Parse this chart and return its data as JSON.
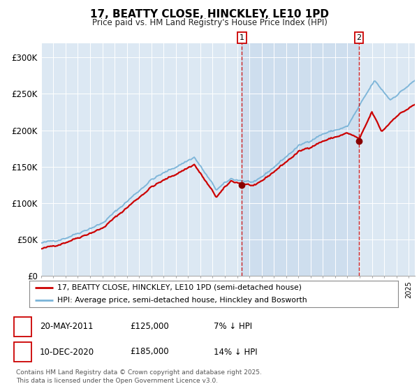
{
  "title": "17, BEATTY CLOSE, HINCKLEY, LE10 1PD",
  "subtitle": "Price paid vs. HM Land Registry's House Price Index (HPI)",
  "ylim": [
    0,
    320000
  ],
  "yticks": [
    0,
    50000,
    100000,
    150000,
    200000,
    250000,
    300000
  ],
  "ytick_labels": [
    "£0",
    "£50K",
    "£100K",
    "£150K",
    "£200K",
    "£250K",
    "£300K"
  ],
  "hpi_color": "#7ab4d8",
  "price_color": "#cc0000",
  "bg_color": "#dce8f3",
  "shaded_color": "#c5d8ec",
  "grid_color": "#ffffff",
  "sale1_x": 2011.38,
  "sale2_x": 2020.95,
  "sale1_price": 125000,
  "sale2_price": 185000,
  "sale1_date_label": "20-MAY-2011",
  "sale2_date_label": "10-DEC-2020",
  "sale1_pct": "7% ↓ HPI",
  "sale2_pct": "14% ↓ HPI",
  "legend_line1": "17, BEATTY CLOSE, HINCKLEY, LE10 1PD (semi-detached house)",
  "legend_line2": "HPI: Average price, semi-detached house, Hinckley and Bosworth",
  "footnote": "Contains HM Land Registry data © Crown copyright and database right 2025.\nThis data is licensed under the Open Government Licence v3.0.",
  "xstart": 1995.0,
  "xend": 2025.5
}
